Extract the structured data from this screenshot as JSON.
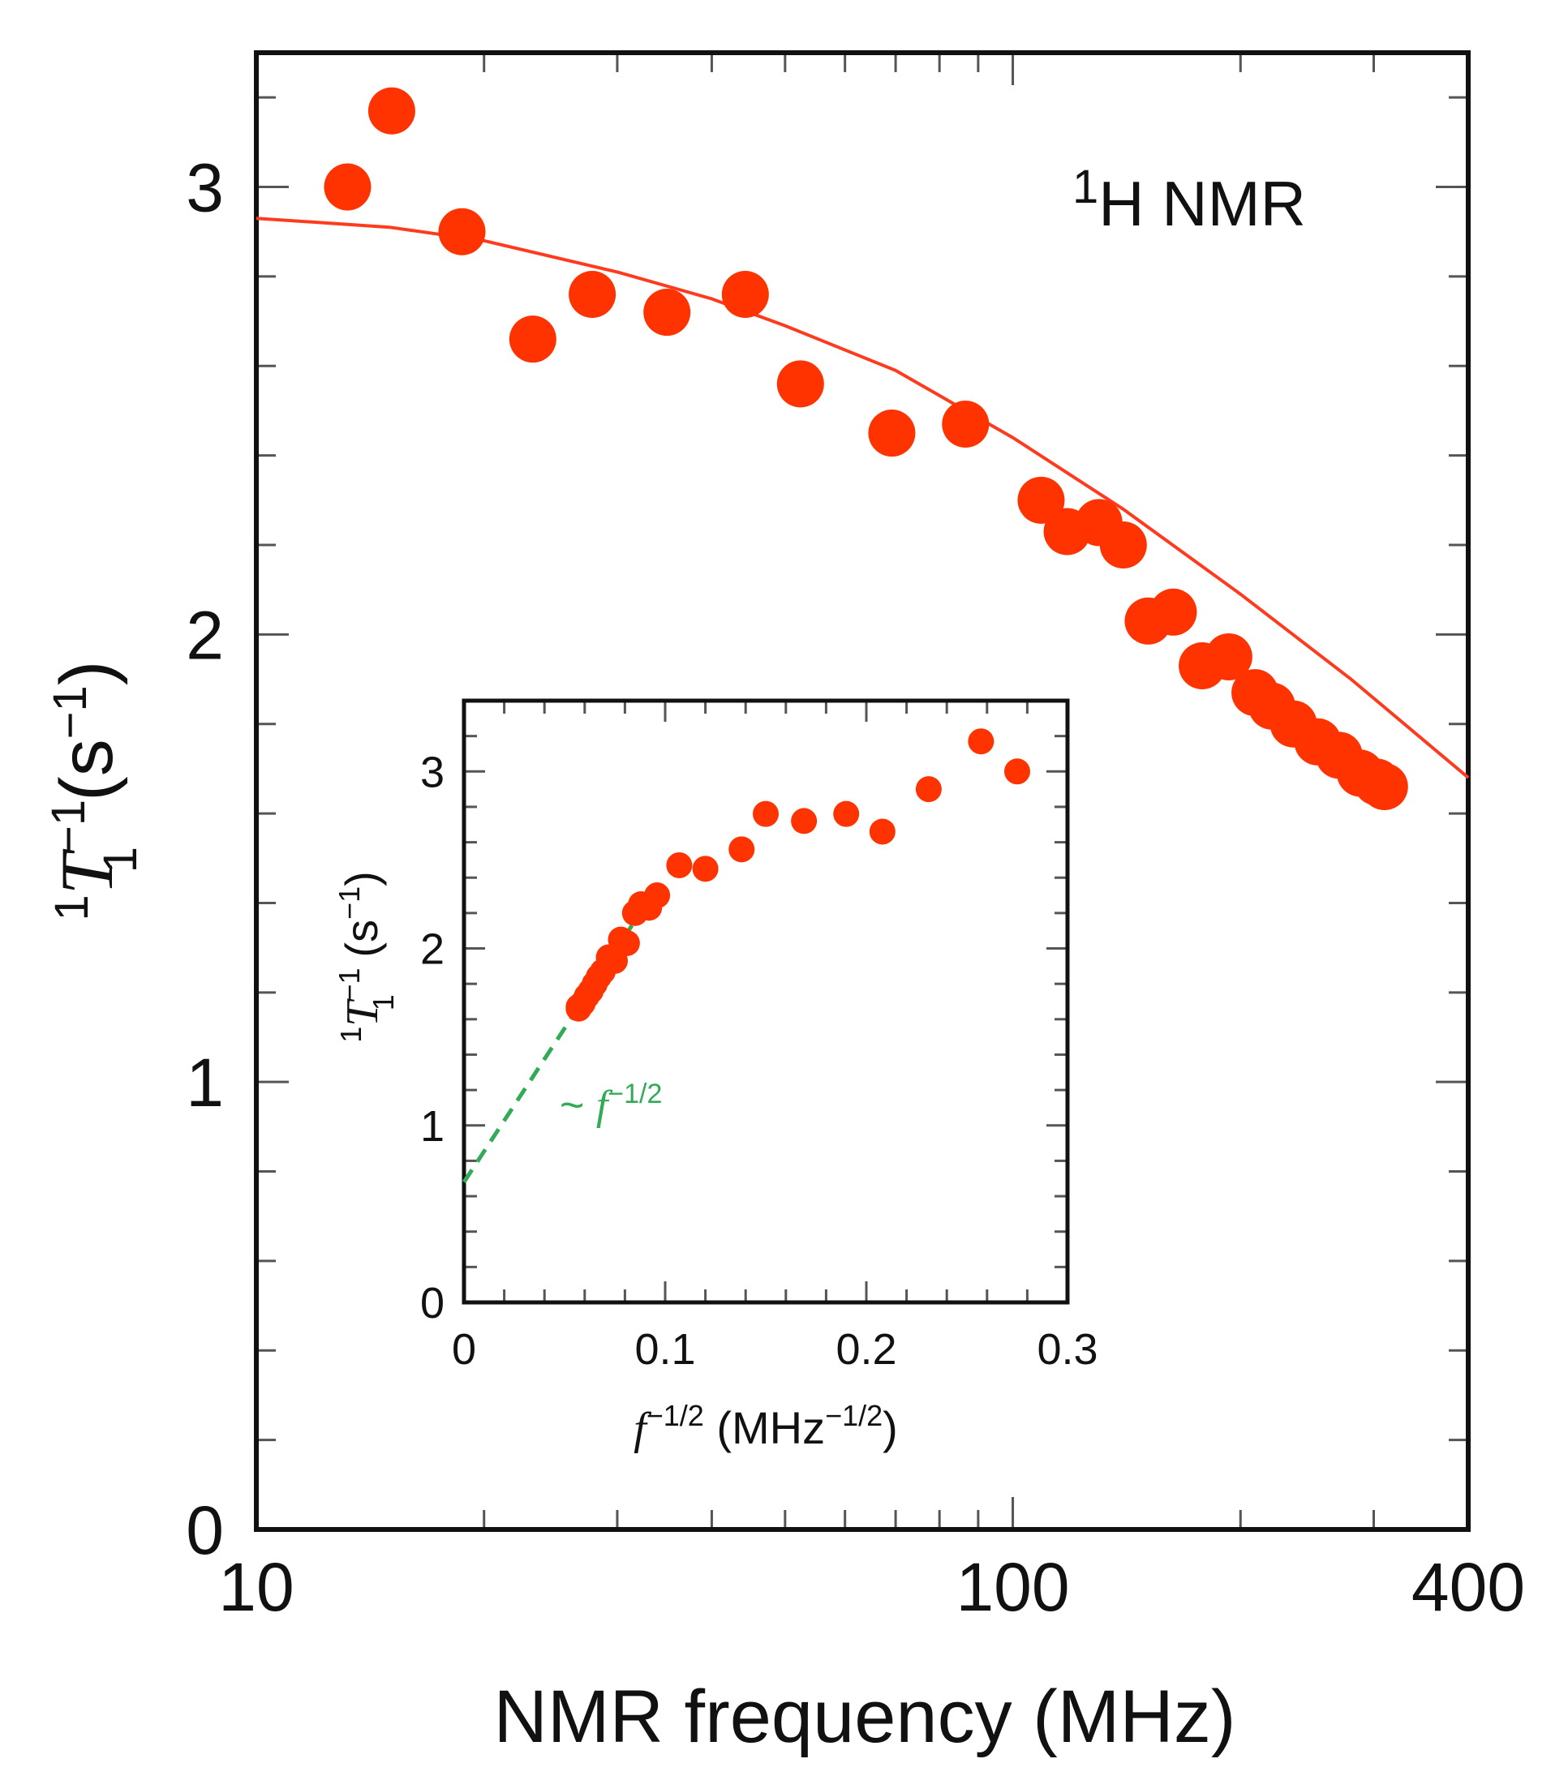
{
  "chart_data": [
    {
      "type": "scatter",
      "name": "main",
      "xscale": "log",
      "xlim": [
        10,
        400
      ],
      "ylim": [
        0,
        3.3
      ],
      "xticks": [
        10,
        100,
        400
      ],
      "xtick_labels": [
        "10",
        "100",
        "400"
      ],
      "yticks": [
        0,
        1,
        2,
        3
      ],
      "ytick_labels": [
        "0",
        "1",
        "2",
        "3"
      ],
      "xlabel": "NMR frequency (MHz)",
      "ylabel": {
        "pre": "1",
        "sym": "T",
        "sup": "−1",
        "sub": "1",
        "unit": "(s",
        "unit_sup": "−1",
        "close": ")"
      },
      "annotation": {
        "sup": "1",
        "text": "H NMR"
      },
      "marker_color": "#ff3300",
      "fit_color": "#ff3b1f",
      "series": [
        {
          "name": "data",
          "x": [
            13.2,
            15.1,
            18.7,
            23.2,
            27.8,
            34.9,
            44.3,
            52.4,
            69.2,
            86.6,
            109,
            118,
            130,
            140,
            151,
            163,
            178,
            193,
            209,
            220,
            235,
            253,
            270,
            288,
            303,
            310
          ],
          "y": [
            3.0,
            3.17,
            2.9,
            2.66,
            2.76,
            2.72,
            2.76,
            2.56,
            2.45,
            2.47,
            2.3,
            2.23,
            2.25,
            2.2,
            2.03,
            2.05,
            1.93,
            1.95,
            1.87,
            1.84,
            1.8,
            1.76,
            1.73,
            1.69,
            1.67,
            1.66
          ]
        },
        {
          "name": "fit",
          "x": [
            10,
            15,
            20,
            30,
            40,
            50,
            70,
            100,
            140,
            200,
            280,
            400
          ],
          "y": [
            2.93,
            2.91,
            2.88,
            2.81,
            2.75,
            2.69,
            2.59,
            2.44,
            2.28,
            2.09,
            1.9,
            1.68
          ]
        }
      ]
    },
    {
      "type": "scatter",
      "name": "inset",
      "xlim": [
        0,
        0.3
      ],
      "ylim": [
        0,
        3.4
      ],
      "xticks": [
        0,
        0.1,
        0.2,
        0.3
      ],
      "xtick_labels": [
        "0",
        "0.1",
        "0.2",
        "0.3"
      ],
      "yticks": [
        0,
        1,
        2,
        3
      ],
      "ytick_labels": [
        "0",
        "1",
        "2",
        "3"
      ],
      "xlabel": {
        "sym": "f",
        "sup": "−1/2",
        "unit": " (MHz",
        "unit_sup": "−1/2",
        "close": ")"
      },
      "ylabel": {
        "pre": "1",
        "sym": "T",
        "sup": "−1",
        "sub": "1",
        "unit": " (s",
        "unit_sup": "−1",
        "close": ")"
      },
      "fit_label": {
        "prefix": "~ ",
        "sym": "f",
        "sup": "−1/2"
      },
      "marker_color": "#ff3300",
      "line_color": "#33aa55",
      "series": [
        {
          "name": "data",
          "x": [
            0.275,
            0.257,
            0.231,
            0.208,
            0.19,
            0.169,
            0.15,
            0.138,
            0.12,
            0.107,
            0.096,
            0.092,
            0.088,
            0.085,
            0.081,
            0.078,
            0.075,
            0.072,
            0.069,
            0.067,
            0.065,
            0.063,
            0.061,
            0.059,
            0.057,
            0.057
          ],
          "y": [
            3.0,
            3.17,
            2.9,
            2.66,
            2.76,
            2.72,
            2.76,
            2.56,
            2.45,
            2.47,
            2.3,
            2.23,
            2.25,
            2.2,
            2.03,
            2.05,
            1.93,
            1.95,
            1.87,
            1.84,
            1.8,
            1.76,
            1.73,
            1.69,
            1.67,
            1.66
          ]
        },
        {
          "name": "fit",
          "x": [
            0,
            0.095
          ],
          "y": [
            0.68,
            2.33
          ]
        }
      ]
    }
  ]
}
